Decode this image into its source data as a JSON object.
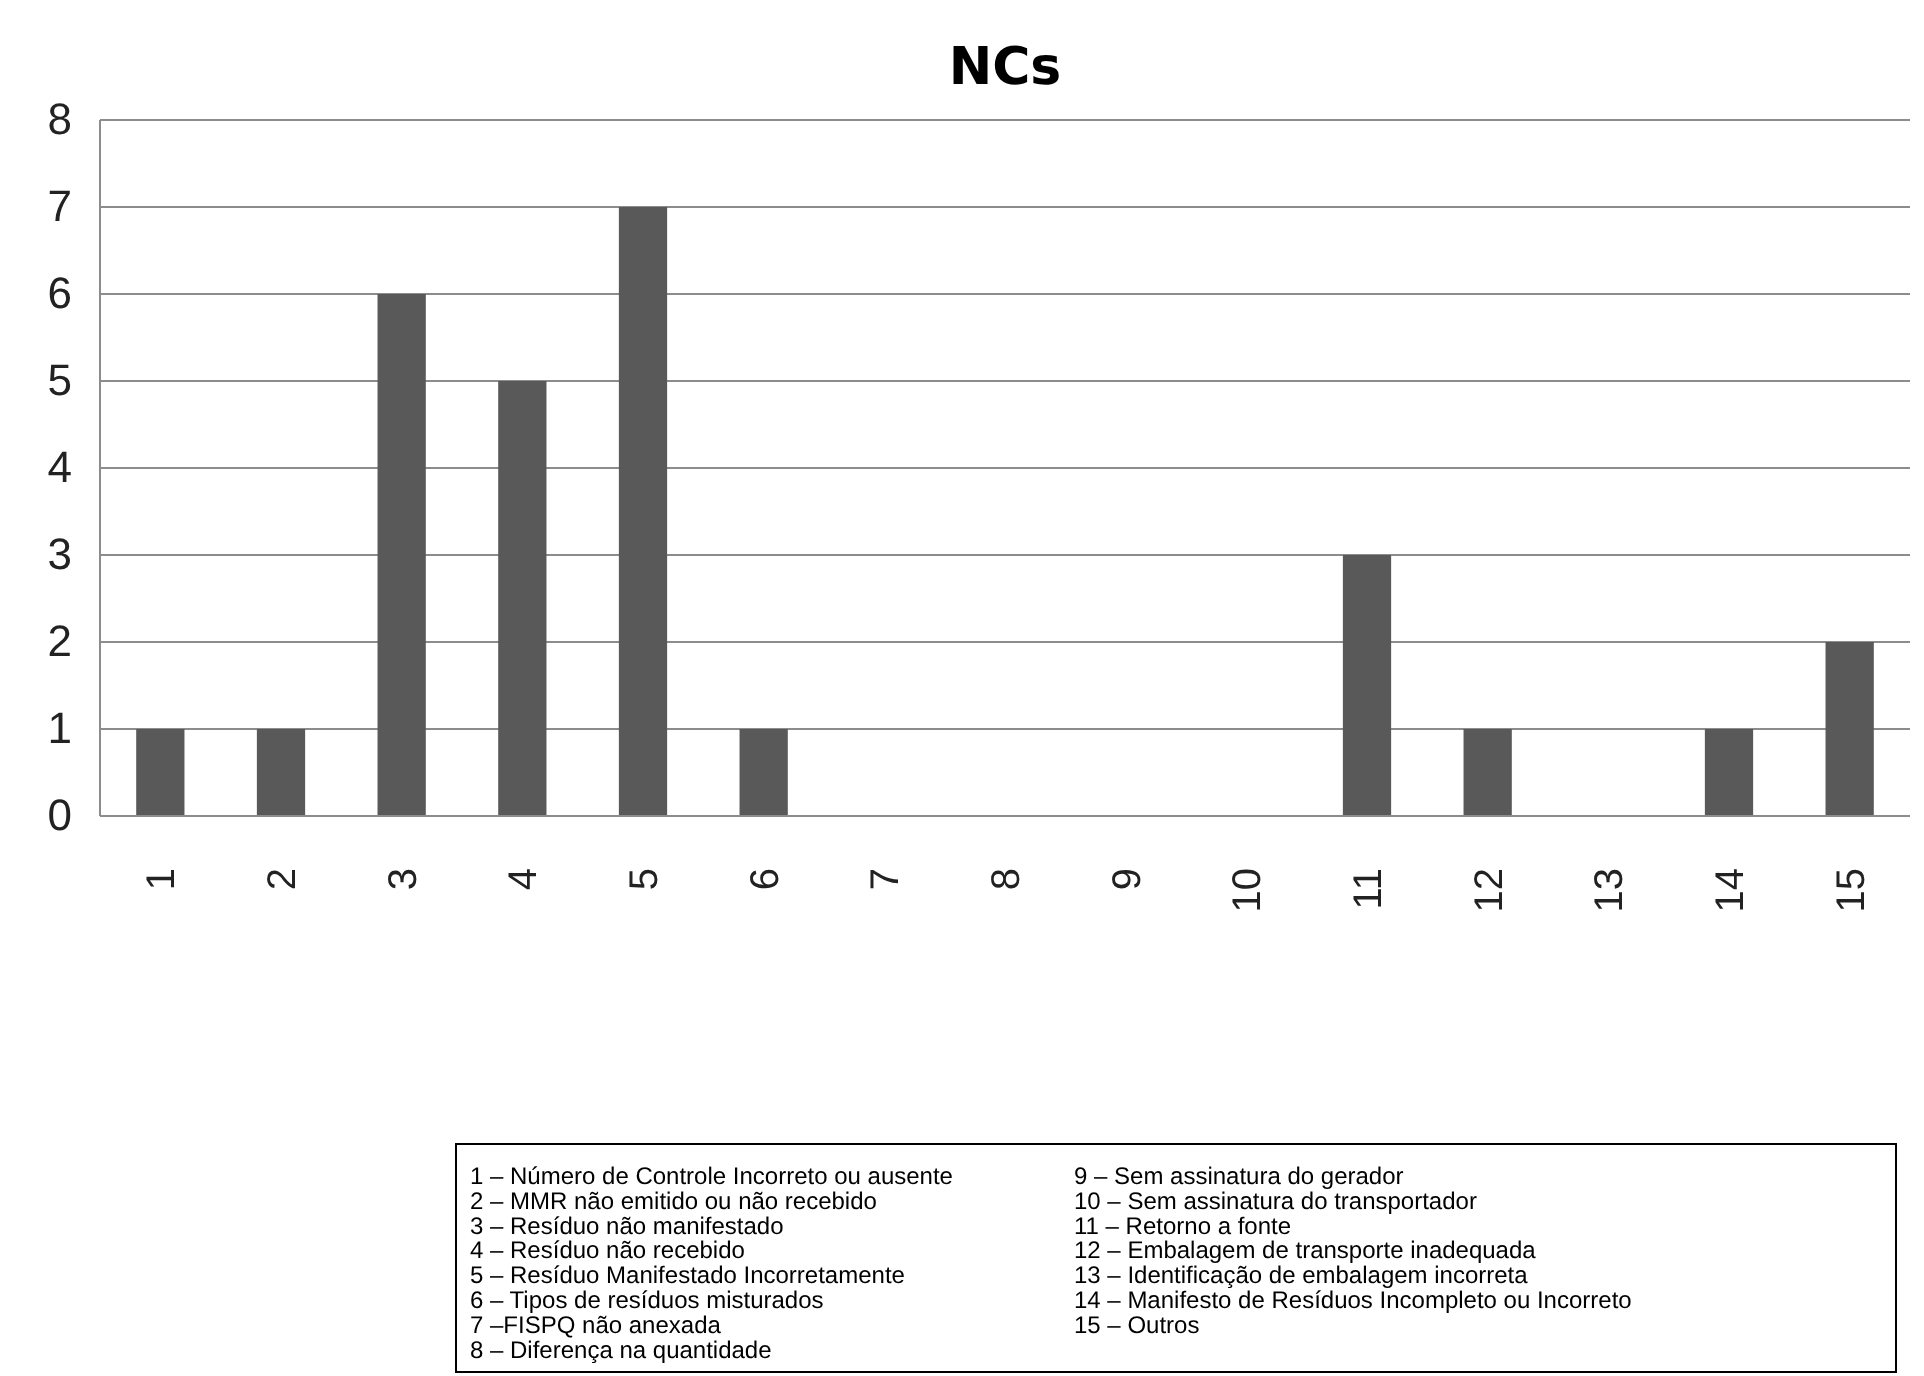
{
  "chart_data": {
    "type": "bar",
    "title": "NCs",
    "categories": [
      "1",
      "2",
      "3",
      "4",
      "5",
      "6",
      "7",
      "8",
      "9",
      "10",
      "11",
      "12",
      "13",
      "14",
      "15"
    ],
    "values": [
      1,
      1,
      6,
      5,
      7,
      1,
      0,
      0,
      0,
      0,
      3,
      1,
      0,
      1,
      2
    ],
    "color": "#595959",
    "ylim": [
      0,
      8
    ],
    "yticks": [
      0,
      1,
      2,
      3,
      4,
      5,
      6,
      7,
      8
    ],
    "grid": "y",
    "annotations": [
      "1 – Número de Controle Incorreto ou ausente",
      "2 – MMR não emitido ou não recebido",
      "3 – Resíduo não manifestado",
      "4 – Resíduo não recebido",
      "5 – Resíduo Manifestado Incorretamente",
      "6 – Tipos de resíduos misturados",
      "7 –FISPQ não anexada",
      "8 – Diferença na quantidade",
      "9 – Sem assinatura do gerador",
      "10 – Sem assinatura do transportador",
      "11 – Retorno a fonte",
      "12 – Embalagem de transporte inadequada",
      "13 – Identificação de embalagem incorreta",
      "14 – Manifesto de Resíduos Incompleto ou Incorreto",
      "15 – Outros"
    ]
  }
}
